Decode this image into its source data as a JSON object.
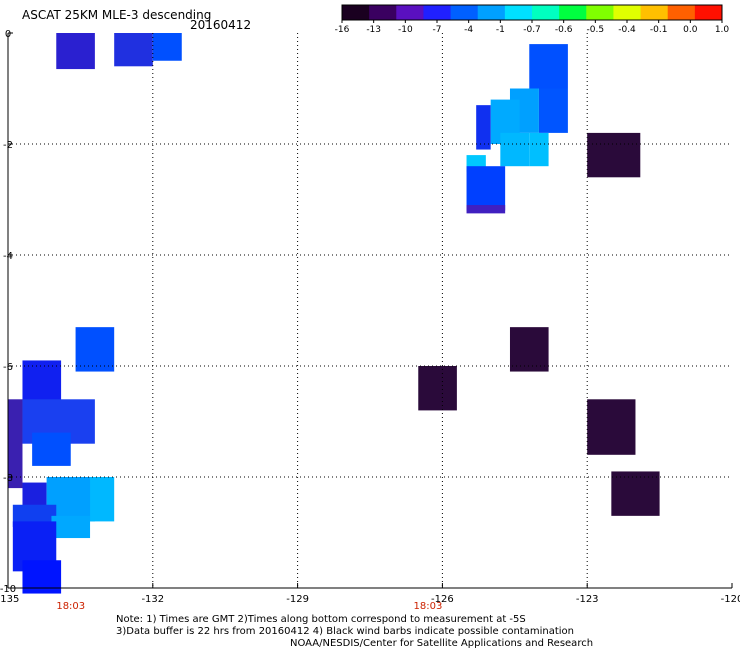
{
  "header": {
    "title": "ASCAT 25KM MLE-3 descending",
    "date": "20160412"
  },
  "colorbar": {
    "labels": [
      "-16",
      "-13",
      "-10",
      "-7",
      "-4",
      "-1",
      "-0.7",
      "-0.6",
      "-0.5",
      "-0.4",
      "-0.1",
      "0.0",
      "1.0"
    ],
    "colors": [
      "#1a0020",
      "#3a0060",
      "#5a10c0",
      "#2020ff",
      "#0060ff",
      "#00a0ff",
      "#00e0ff",
      "#00ffc0",
      "#00ff40",
      "#80ff00",
      "#e0ff00",
      "#ffc000",
      "#ff6000",
      "#ff1000"
    ]
  },
  "axes": {
    "x_ticks": [
      "-135",
      "-132",
      "-129",
      "-126",
      "-123",
      "-120"
    ],
    "x_values": [
      -135,
      -132,
      -129,
      -126,
      -123,
      -120
    ],
    "y_ticks": [
      "0",
      "-2",
      "-4",
      "-6",
      "-8",
      "-10"
    ],
    "y_values": [
      0,
      -2,
      -4,
      -6,
      -8,
      -10
    ],
    "xlim": [
      -135,
      -120
    ],
    "ylim": [
      -10,
      0
    ],
    "grid": "dotted"
  },
  "time_marks": [
    {
      "label": "18:03",
      "lon": -133.7
    },
    {
      "label": "18:03",
      "lon": -126.3
    }
  ],
  "notes": {
    "line1": "Note: 1) Times are GMT 2)Times along bottom correspond to measurement at -5S",
    "line2": "3)Data buffer is 22 hrs from 20160412 4) Black wind barbs indicate possible contamination",
    "credit": "NOAA/NESDIS/Center for Satellite Applications and Research"
  },
  "colors": {
    "time_mark": "#cc2200"
  },
  "swaths": [
    {
      "lon": -132.8,
      "lat": 0.0,
      "w": 0.8,
      "h": 0.6,
      "color": "#2030e0"
    },
    {
      "lon": -132.0,
      "lat": 0.0,
      "w": 0.6,
      "h": 0.5,
      "color": "#0050ff"
    },
    {
      "lon": -134.0,
      "lat": 0.0,
      "w": 0.8,
      "h": 0.65,
      "color": "#2a20d0"
    },
    {
      "lon": -124.2,
      "lat": -0.2,
      "w": 0.8,
      "h": 0.8,
      "color": "#0050ff"
    },
    {
      "lon": -124.0,
      "lat": -1.0,
      "w": 0.6,
      "h": 0.8,
      "color": "#0055ff"
    },
    {
      "lon": -124.6,
      "lat": -1.0,
      "w": 0.6,
      "h": 0.8,
      "color": "#00a0ff"
    },
    {
      "lon": -125.0,
      "lat": -1.2,
      "w": 0.6,
      "h": 0.8,
      "color": "#00aaff"
    },
    {
      "lon": -125.3,
      "lat": -1.3,
      "w": 0.3,
      "h": 0.8,
      "color": "#1030f0"
    },
    {
      "lon": -124.2,
      "lat": -1.8,
      "w": 0.4,
      "h": 0.6,
      "color": "#00bfff"
    },
    {
      "lon": -124.8,
      "lat": -1.8,
      "w": 0.6,
      "h": 0.6,
      "color": "#00b8ff"
    },
    {
      "lon": -125.5,
      "lat": -2.2,
      "w": 0.4,
      "h": 0.3,
      "color": "#00c8ff"
    },
    {
      "lon": -125.5,
      "lat": -2.4,
      "w": 0.8,
      "h": 0.8,
      "color": "#0040ff"
    },
    {
      "lon": -125.5,
      "lat": -3.1,
      "w": 0.8,
      "h": 0.15,
      "color": "#4020c0"
    },
    {
      "lon": -123.0,
      "lat": -1.8,
      "w": 1.1,
      "h": 0.8,
      "color": "#2a0a3a"
    },
    {
      "lon": -133.6,
      "lat": -5.3,
      "w": 0.8,
      "h": 0.8,
      "color": "#0050ff"
    },
    {
      "lon": -124.6,
      "lat": -5.3,
      "w": 0.8,
      "h": 0.8,
      "color": "#2a0a3a"
    },
    {
      "lon": -126.5,
      "lat": -6.0,
      "w": 0.8,
      "h": 0.8,
      "color": "#2a0a3a"
    },
    {
      "lon": -123.0,
      "lat": -6.6,
      "w": 1.0,
      "h": 1.0,
      "color": "#2a0a3a"
    },
    {
      "lon": -122.5,
      "lat": -7.9,
      "w": 1.0,
      "h": 0.8,
      "color": "#2a0a3a"
    },
    {
      "lon": -134.7,
      "lat": -5.9,
      "w": 0.8,
      "h": 0.8,
      "color": "#1020f0"
    },
    {
      "lon": -135.0,
      "lat": -6.6,
      "w": 0.3,
      "h": 1.6,
      "color": "#3a20b0"
    },
    {
      "lon": -134.7,
      "lat": -6.6,
      "w": 1.5,
      "h": 0.8,
      "color": "#1a40f0"
    },
    {
      "lon": -134.5,
      "lat": -7.2,
      "w": 0.8,
      "h": 0.6,
      "color": "#0050ff"
    },
    {
      "lon": -134.7,
      "lat": -8.1,
      "w": 0.5,
      "h": 0.6,
      "color": "#1a20e0"
    },
    {
      "lon": -134.2,
      "lat": -8.0,
      "w": 1.0,
      "h": 0.8,
      "color": "#00a0ff"
    },
    {
      "lon": -133.3,
      "lat": -8.0,
      "w": 0.5,
      "h": 0.8,
      "color": "#00b8ff"
    },
    {
      "lon": -134.9,
      "lat": -8.5,
      "w": 0.9,
      "h": 0.4,
      "color": "#1040f0"
    },
    {
      "lon": -134.1,
      "lat": -8.7,
      "w": 0.8,
      "h": 0.4,
      "color": "#00a8ff"
    },
    {
      "lon": -134.9,
      "lat": -8.8,
      "w": 0.9,
      "h": 0.9,
      "color": "#0a20f5"
    },
    {
      "lon": -134.7,
      "lat": -9.5,
      "w": 0.8,
      "h": 0.6,
      "color": "#0014ff"
    }
  ]
}
